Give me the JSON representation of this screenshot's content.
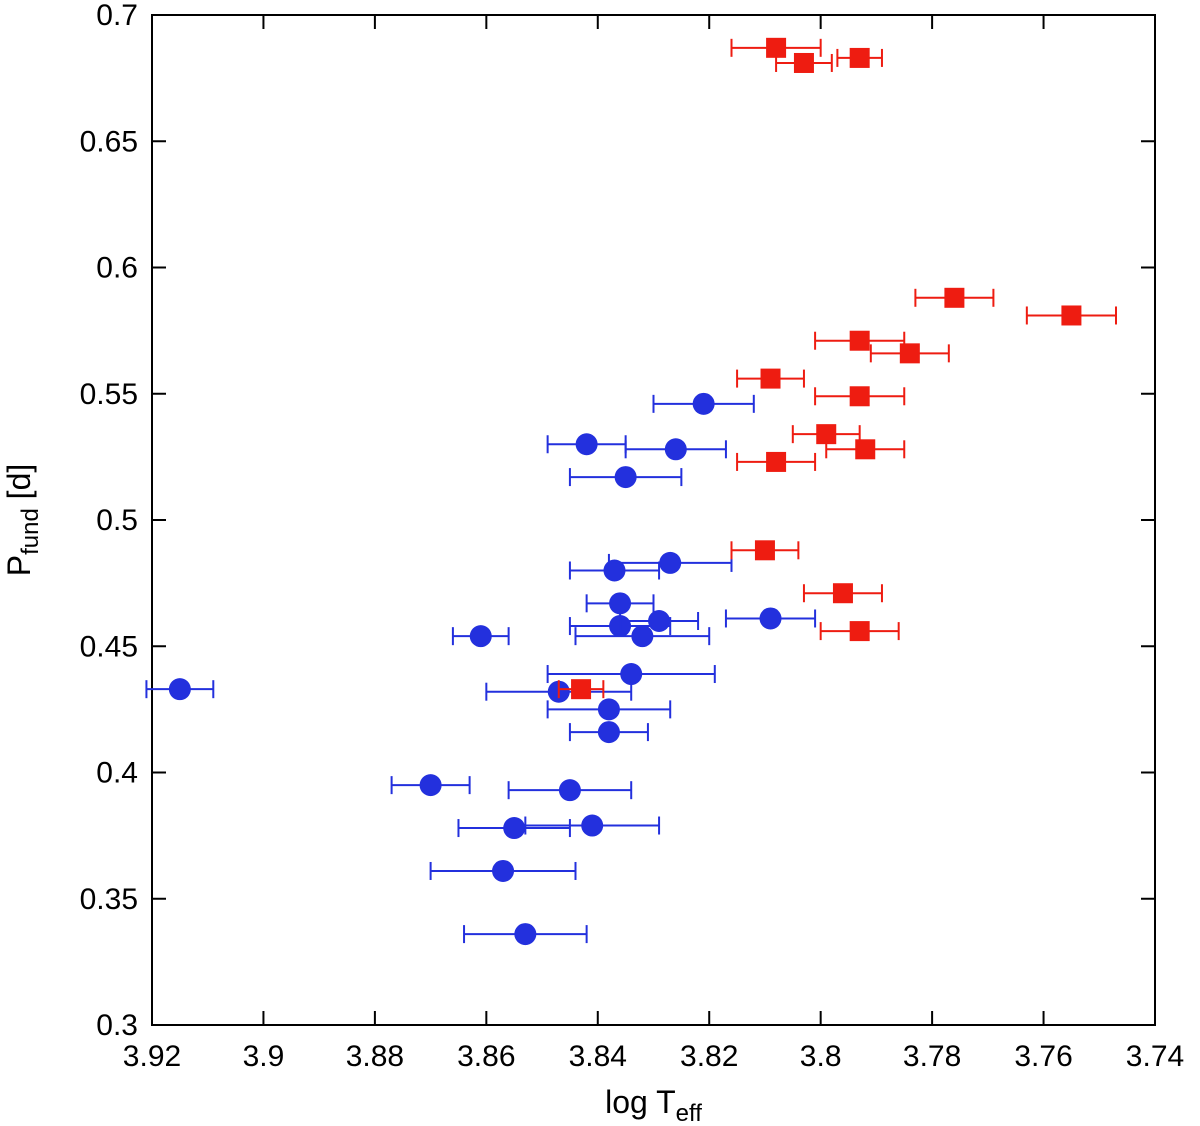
{
  "figure": {
    "background": "#ffffff",
    "axis_color": "#000000"
  },
  "chart_data": {
    "type": "scatter",
    "title": "",
    "xlabel": {
      "pre": "log T",
      "sub": "eff",
      "post": ""
    },
    "ylabel": {
      "pre": "P",
      "sub": "fund",
      "post": " [d]"
    },
    "xlim": [
      3.92,
      3.74
    ],
    "ylim": [
      0.3,
      0.7
    ],
    "x_reversed": true,
    "grid": false,
    "legend": "none",
    "x_ticks": {
      "values": [
        3.92,
        3.9,
        3.88,
        3.86,
        3.84,
        3.82,
        3.8,
        3.78,
        3.76,
        3.74
      ],
      "labels": [
        "3.92",
        "3.9",
        "3.88",
        "3.86",
        "3.84",
        "3.82",
        "3.8",
        "3.78",
        "3.76",
        "3.74"
      ]
    },
    "y_ticks": {
      "values": [
        0.3,
        0.35,
        0.4,
        0.45,
        0.5,
        0.55,
        0.6,
        0.65,
        0.7
      ],
      "labels": [
        "0.3",
        "0.35",
        "0.4",
        "0.45",
        "0.5",
        "0.55",
        "0.6",
        "0.65",
        "0.7"
      ]
    },
    "series": [
      {
        "name": "blue-circles",
        "marker": "circle",
        "color": "#2330dd",
        "errorbar_color": "#2330dd",
        "points": [
          {
            "x": 3.915,
            "y": 0.433,
            "xerr": 0.006
          },
          {
            "x": 3.87,
            "y": 0.395,
            "xerr": 0.007
          },
          {
            "x": 3.861,
            "y": 0.454,
            "xerr": 0.005
          },
          {
            "x": 3.857,
            "y": 0.361,
            "xerr": 0.013
          },
          {
            "x": 3.855,
            "y": 0.378,
            "xerr": 0.01
          },
          {
            "x": 3.853,
            "y": 0.336,
            "xerr": 0.011
          },
          {
            "x": 3.847,
            "y": 0.432,
            "xerr": 0.013
          },
          {
            "x": 3.845,
            "y": 0.393,
            "xerr": 0.011
          },
          {
            "x": 3.842,
            "y": 0.53,
            "xerr": 0.007
          },
          {
            "x": 3.841,
            "y": 0.379,
            "xerr": 0.012
          },
          {
            "x": 3.838,
            "y": 0.425,
            "xerr": 0.011
          },
          {
            "x": 3.838,
            "y": 0.416,
            "xerr": 0.007
          },
          {
            "x": 3.837,
            "y": 0.48,
            "xerr": 0.008
          },
          {
            "x": 3.836,
            "y": 0.467,
            "xerr": 0.006
          },
          {
            "x": 3.836,
            "y": 0.458,
            "xerr": 0.009
          },
          {
            "x": 3.835,
            "y": 0.517,
            "xerr": 0.01
          },
          {
            "x": 3.834,
            "y": 0.439,
            "xerr": 0.015
          },
          {
            "x": 3.832,
            "y": 0.454,
            "xerr": 0.012
          },
          {
            "x": 3.829,
            "y": 0.46,
            "xerr": 0.007
          },
          {
            "x": 3.827,
            "y": 0.483,
            "xerr": 0.011
          },
          {
            "x": 3.826,
            "y": 0.528,
            "xerr": 0.009
          },
          {
            "x": 3.821,
            "y": 0.546,
            "xerr": 0.009
          },
          {
            "x": 3.809,
            "y": 0.461,
            "xerr": 0.008
          }
        ]
      },
      {
        "name": "red-squares",
        "marker": "square",
        "color": "#ee1c11",
        "errorbar_color": "#ee1c11",
        "points": [
          {
            "x": 3.843,
            "y": 0.433,
            "xerr": 0.004
          },
          {
            "x": 3.81,
            "y": 0.488,
            "xerr": 0.006
          },
          {
            "x": 3.809,
            "y": 0.556,
            "xerr": 0.006
          },
          {
            "x": 3.808,
            "y": 0.687,
            "xerr": 0.008
          },
          {
            "x": 3.808,
            "y": 0.523,
            "xerr": 0.007
          },
          {
            "x": 3.803,
            "y": 0.681,
            "xerr": 0.005
          },
          {
            "x": 3.799,
            "y": 0.534,
            "xerr": 0.006
          },
          {
            "x": 3.796,
            "y": 0.471,
            "xerr": 0.007
          },
          {
            "x": 3.793,
            "y": 0.683,
            "xerr": 0.004
          },
          {
            "x": 3.793,
            "y": 0.571,
            "xerr": 0.008
          },
          {
            "x": 3.793,
            "y": 0.549,
            "xerr": 0.008
          },
          {
            "x": 3.793,
            "y": 0.456,
            "xerr": 0.007
          },
          {
            "x": 3.792,
            "y": 0.528,
            "xerr": 0.007
          },
          {
            "x": 3.784,
            "y": 0.566,
            "xerr": 0.007
          },
          {
            "x": 3.776,
            "y": 0.588,
            "xerr": 0.007
          },
          {
            "x": 3.755,
            "y": 0.581,
            "xerr": 0.008
          }
        ]
      }
    ]
  }
}
